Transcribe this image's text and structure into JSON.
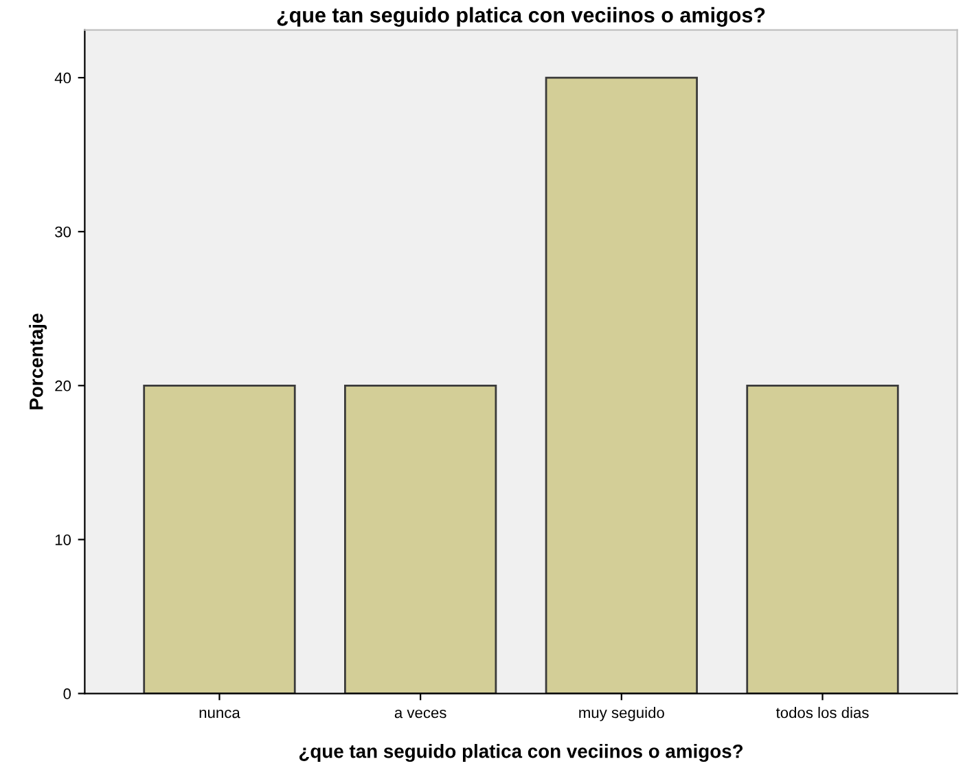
{
  "chart_data": {
    "type": "bar",
    "title": "¿que tan seguido platica con veciinos o amigos?",
    "xlabel": "¿que tan seguido platica con veciinos o amigos?",
    "ylabel": "Porcentaje",
    "categories": [
      "nunca",
      "a veces",
      "muy seguido",
      "todos los dias"
    ],
    "values": [
      20,
      20,
      40,
      20
    ],
    "color": "#d3ce97",
    "ylim": [
      0,
      43.1
    ],
    "yticks": [
      0,
      10,
      20,
      30,
      40
    ],
    "grid": false,
    "legend": false
  }
}
